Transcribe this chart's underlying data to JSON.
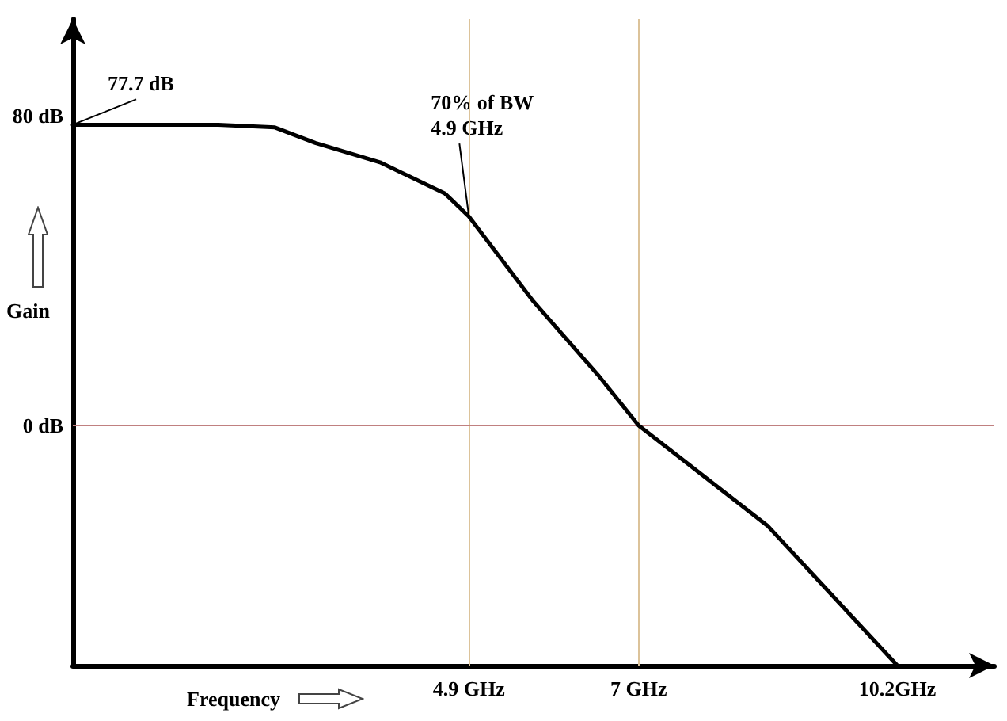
{
  "chart_data": {
    "type": "line",
    "xlabel": "Frequency",
    "ylabel": "Gain",
    "x": [
      0,
      1.8,
      2.5,
      3.0,
      3.8,
      4.6,
      4.9,
      5.7,
      6.5,
      7,
      8.6,
      10.2
    ],
    "series": [
      {
        "color": "#000000",
        "values": [
          77.7,
          77.7,
          77,
          73,
          68,
          60,
          54,
          32,
          13,
          0,
          -26,
          -62
        ]
      }
    ],
    "xlim": [
      0,
      11.4
    ],
    "ylim": [
      -62,
      105
    ],
    "xticks": [
      {
        "value": 4.9,
        "label": "4.9 GHz"
      },
      {
        "value": 7,
        "label": "7 GHz"
      },
      {
        "value": 10.2,
        "label": "10.2GHz"
      }
    ],
    "yticks": [
      {
        "value": 0,
        "label": "0 dB"
      },
      {
        "value": 80,
        "label": "80 dB"
      }
    ],
    "ref_lines": [
      {
        "axis": "x",
        "value": 4.9,
        "color": "#dcc39a"
      },
      {
        "axis": "x",
        "value": 7,
        "color": "#dcc39a"
      },
      {
        "axis": "y",
        "value": 0,
        "color": "#c08080"
      }
    ],
    "annotations": [
      {
        "text": "77.7 dB",
        "x": 0,
        "y": 77.7
      },
      {
        "text": "70% of BW\n4.9 GHz",
        "x": 4.9,
        "y": 54
      }
    ],
    "grid": false,
    "marker": "none",
    "line_style": "solid"
  }
}
